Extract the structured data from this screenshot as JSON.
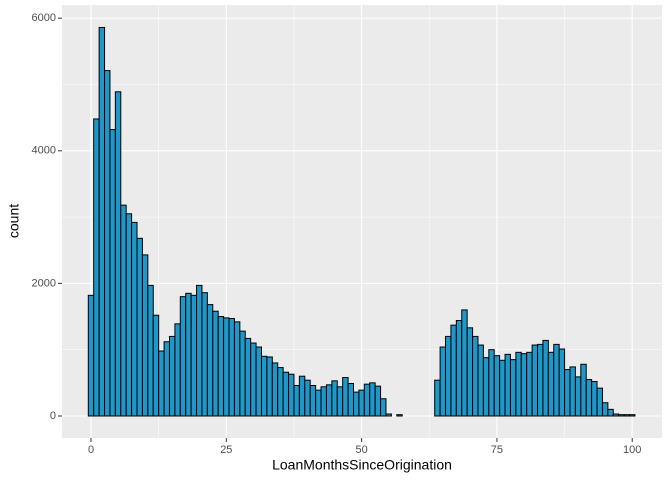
{
  "chart_data": {
    "type": "histogram",
    "x_label": "LoanMonthsSinceOrigination",
    "y_label": "count",
    "bins": [
      -0.5,
      0.5,
      1.5,
      2.5,
      3.5,
      4.5,
      5.5,
      6.5,
      7.5,
      8.5,
      9.5,
      10.5,
      11.5,
      12.5,
      13.5,
      14.5,
      15.5,
      16.5,
      17.5,
      18.5,
      19.5,
      20.5,
      21.5,
      22.5,
      23.5,
      24.5,
      25.5,
      26.5,
      27.5,
      28.5,
      29.5,
      30.5,
      31.5,
      32.5,
      33.5,
      34.5,
      35.5,
      36.5,
      37.5,
      38.5,
      39.5,
      40.5,
      41.5,
      42.5,
      43.5,
      44.5,
      45.5,
      46.5,
      47.5,
      48.5,
      49.5,
      50.5,
      51.5,
      52.5,
      53.5,
      54.5,
      55.5,
      56.5,
      57.5,
      58.5,
      59.5,
      60.5,
      61.5,
      62.5,
      63.5,
      64.5,
      65.5,
      66.5,
      67.5,
      68.5,
      69.5,
      70.5,
      71.5,
      72.5,
      73.5,
      74.5,
      75.5,
      76.5,
      77.5,
      78.5,
      79.5,
      80.5,
      81.5,
      82.5,
      83.5,
      84.5,
      85.5,
      86.5,
      87.5,
      88.5,
      89.5,
      90.5,
      91.5,
      92.5,
      93.5,
      94.5,
      95.5,
      96.5,
      97.5,
      98.5,
      99.5,
      100.5
    ],
    "values": [
      1820,
      4480,
      5860,
      5210,
      4320,
      4890,
      3180,
      3050,
      2920,
      2680,
      2430,
      1970,
      1520,
      980,
      1120,
      1200,
      1390,
      1800,
      1850,
      1820,
      1970,
      1860,
      1680,
      1580,
      1500,
      1480,
      1470,
      1420,
      1280,
      1170,
      1100,
      1040,
      900,
      890,
      800,
      730,
      660,
      630,
      460,
      600,
      540,
      460,
      390,
      440,
      470,
      530,
      440,
      580,
      490,
      360,
      390,
      480,
      500,
      450,
      260,
      30,
      0,
      20,
      0,
      0,
      0,
      0,
      0,
      0,
      540,
      1040,
      1200,
      1370,
      1440,
      1600,
      1330,
      1200,
      1070,
      880,
      1000,
      910,
      840,
      930,
      850,
      960,
      940,
      960,
      1070,
      1080,
      1140,
      960,
      1080,
      1010,
      700,
      740,
      590,
      780,
      550,
      520,
      420,
      200,
      100,
      30,
      20,
      20,
      20
    ],
    "color": "#1f97c8",
    "xlim": [
      -5.36,
      105.5
    ],
    "ylim": [
      -332,
      6199
    ],
    "xticks": [
      0,
      25,
      50,
      75,
      100
    ],
    "yticks": [
      0,
      2000,
      4000,
      6000
    ],
    "grid": true
  }
}
